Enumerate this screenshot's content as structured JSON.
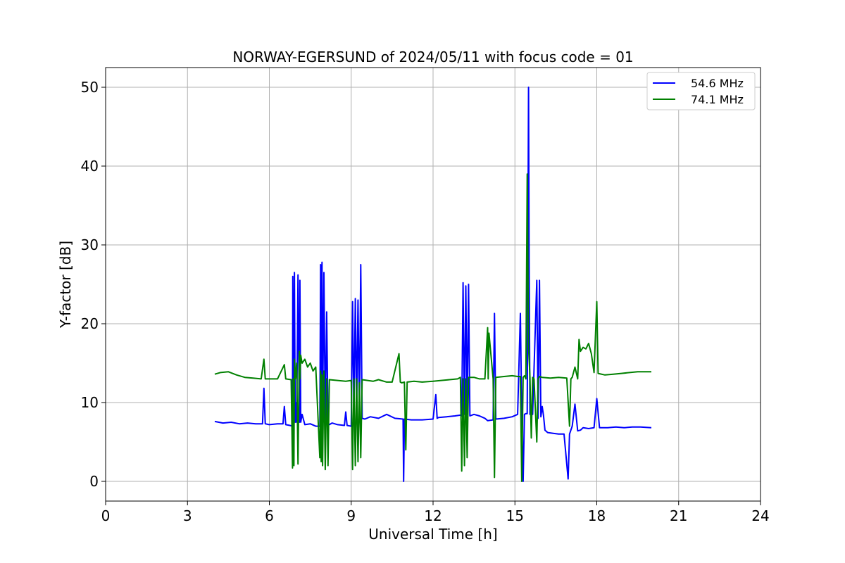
{
  "chart_data": {
    "type": "line",
    "title": "NORWAY-EGERSUND of 2024/05/11 with focus code = 01",
    "xlabel": "Universal Time [h]",
    "ylabel": "Y-factor [dB]",
    "xlim": [
      0,
      24
    ],
    "ylim": [
      -2.5,
      52.5
    ],
    "xticks": [
      0,
      3,
      6,
      9,
      12,
      15,
      18,
      21,
      24
    ],
    "yticks": [
      0,
      10,
      20,
      30,
      40,
      50
    ],
    "grid": true,
    "legend_position": "top-right",
    "series": [
      {
        "name": "54.6 MHz",
        "color": "#0000ff",
        "x": [
          4.0,
          4.3,
          4.6,
          4.9,
          5.2,
          5.5,
          5.75,
          5.8,
          5.85,
          6.0,
          6.3,
          6.5,
          6.55,
          6.6,
          6.75,
          6.85,
          6.86,
          6.9,
          6.92,
          6.95,
          6.97,
          7.0,
          7.05,
          7.1,
          7.12,
          7.15,
          7.2,
          7.3,
          7.5,
          7.7,
          7.85,
          7.88,
          7.9,
          7.93,
          7.95,
          8.0,
          8.05,
          8.1,
          8.15,
          8.2,
          8.3,
          8.5,
          8.75,
          8.8,
          8.85,
          9.0,
          9.05,
          9.1,
          9.15,
          9.2,
          9.25,
          9.3,
          9.35,
          9.4,
          9.5,
          9.7,
          10.0,
          10.3,
          10.6,
          10.9,
          10.92,
          10.95,
          11.2,
          11.6,
          12.0,
          12.1,
          12.15,
          12.2,
          12.5,
          12.8,
          13.0,
          13.05,
          13.1,
          13.15,
          13.2,
          13.25,
          13.3,
          13.35,
          13.5,
          13.7,
          13.9,
          14.0,
          14.2,
          14.25,
          14.3,
          14.6,
          14.9,
          15.1,
          15.2,
          15.25,
          15.3,
          15.35,
          15.4,
          15.45,
          15.5,
          15.52,
          15.55,
          15.6,
          15.65,
          15.8,
          15.85,
          15.9,
          15.95,
          16.0,
          16.05,
          16.1,
          16.2,
          16.4,
          16.6,
          16.8,
          16.95,
          17.0,
          17.05,
          17.1,
          17.2,
          17.3,
          17.4,
          17.5,
          17.7,
          17.9,
          18.0,
          18.1,
          18.4,
          18.7,
          19.0,
          19.3,
          19.6,
          20.0
        ],
        "y": [
          7.6,
          7.4,
          7.5,
          7.3,
          7.4,
          7.3,
          7.3,
          11.8,
          7.3,
          7.2,
          7.3,
          7.3,
          9.5,
          7.2,
          7.1,
          7.0,
          26.0,
          8.0,
          26.5,
          7.5,
          10.0,
          7.5,
          26.2,
          7.5,
          25.5,
          7.5,
          8.5,
          7.2,
          7.3,
          7.0,
          7.0,
          27.5,
          8.0,
          27.8,
          8.0,
          26.5,
          7.5,
          21.5,
          7.3,
          7.2,
          7.4,
          7.2,
          7.1,
          8.8,
          7.1,
          7.0,
          22.8,
          8.5,
          23.2,
          9.0,
          23.0,
          8.5,
          27.5,
          8.0,
          7.9,
          8.2,
          8.0,
          8.5,
          8.0,
          7.9,
          0.0,
          7.9,
          7.8,
          7.8,
          7.9,
          11.0,
          8.0,
          8.1,
          8.2,
          8.3,
          8.4,
          8.3,
          25.2,
          8.5,
          24.8,
          8.5,
          25.0,
          8.3,
          8.5,
          8.3,
          8.0,
          7.7,
          7.8,
          21.3,
          7.9,
          8.0,
          8.2,
          8.5,
          21.3,
          8.5,
          0.0,
          8.5,
          8.6,
          8.6,
          50.0,
          28.0,
          8.5,
          9.0,
          8.5,
          25.5,
          8.0,
          25.5,
          8.2,
          9.5,
          8.3,
          6.5,
          6.2,
          6.1,
          6.0,
          6.0,
          0.3,
          6.0,
          6.5,
          7.0,
          9.8,
          6.4,
          6.5,
          6.8,
          6.7,
          6.8,
          10.5,
          6.8,
          6.8,
          6.9,
          6.8,
          6.9,
          6.9,
          6.8
        ]
      },
      {
        "name": "74.1 MHz",
        "color": "#008000",
        "x": [
          4.0,
          4.2,
          4.5,
          4.8,
          5.1,
          5.4,
          5.7,
          5.8,
          5.85,
          6.0,
          6.3,
          6.55,
          6.6,
          6.8,
          6.85,
          6.87,
          6.9,
          6.92,
          6.95,
          7.0,
          7.05,
          7.1,
          7.12,
          7.15,
          7.2,
          7.3,
          7.4,
          7.5,
          7.6,
          7.7,
          7.85,
          7.88,
          7.9,
          7.93,
          7.95,
          8.0,
          8.05,
          8.1,
          8.15,
          8.2,
          8.5,
          8.8,
          9.0,
          9.05,
          9.1,
          9.15,
          9.2,
          9.25,
          9.3,
          9.35,
          9.4,
          9.6,
          9.8,
          10.0,
          10.3,
          10.5,
          10.75,
          10.8,
          10.85,
          10.95,
          11.0,
          11.05,
          11.3,
          11.6,
          12.0,
          12.3,
          12.6,
          12.9,
          13.0,
          13.05,
          13.1,
          13.15,
          13.2,
          13.25,
          13.3,
          13.5,
          13.7,
          13.9,
          14.0,
          14.02,
          14.05,
          14.2,
          14.25,
          14.3,
          14.6,
          14.9,
          15.1,
          15.2,
          15.25,
          15.3,
          15.35,
          15.4,
          15.45,
          15.5,
          15.55,
          15.6,
          15.65,
          15.7,
          15.8,
          15.85,
          15.9,
          16.0,
          16.3,
          16.6,
          16.9,
          17.0,
          17.05,
          17.1,
          17.2,
          17.3,
          17.35,
          17.4,
          17.5,
          17.6,
          17.7,
          17.8,
          17.9,
          18.0,
          18.05,
          18.3,
          18.6,
          18.9,
          19.2,
          19.5,
          20.0
        ],
        "y": [
          13.6,
          13.8,
          13.9,
          13.5,
          13.2,
          13.1,
          13.0,
          15.5,
          13.0,
          13.0,
          13.0,
          14.8,
          13.0,
          12.9,
          1.7,
          13.0,
          2.0,
          15.5,
          13.0,
          15.0,
          2.2,
          16.5,
          13.0,
          16.0,
          15.0,
          15.5,
          14.5,
          15.0,
          14.0,
          14.5,
          3.0,
          14.0,
          2.5,
          13.5,
          2.0,
          14.0,
          1.5,
          13.0,
          2.0,
          12.9,
          12.8,
          12.7,
          12.8,
          1.5,
          13.0,
          2.0,
          13.0,
          2.5,
          12.5,
          3.0,
          12.9,
          12.8,
          12.7,
          12.9,
          12.6,
          12.6,
          16.2,
          12.6,
          12.5,
          12.6,
          4.0,
          12.6,
          12.7,
          12.6,
          12.7,
          12.8,
          12.9,
          13.0,
          13.2,
          1.3,
          13.0,
          2.0,
          13.0,
          3.0,
          13.2,
          13.2,
          13.0,
          13.0,
          19.5,
          13.0,
          18.8,
          13.0,
          0.5,
          13.2,
          13.3,
          13.4,
          13.3,
          13.3,
          0.0,
          13.2,
          13.4,
          13.0,
          39.0,
          17.0,
          13.3,
          5.5,
          13.2,
          13.0,
          5.0,
          13.0,
          13.3,
          13.2,
          13.1,
          13.2,
          13.1,
          7.0,
          13.0,
          13.2,
          14.5,
          13.0,
          18.0,
          16.5,
          17.0,
          16.8,
          17.5,
          16.2,
          13.8,
          22.8,
          13.7,
          13.5,
          13.6,
          13.7,
          13.8,
          13.9,
          13.9
        ]
      }
    ]
  }
}
